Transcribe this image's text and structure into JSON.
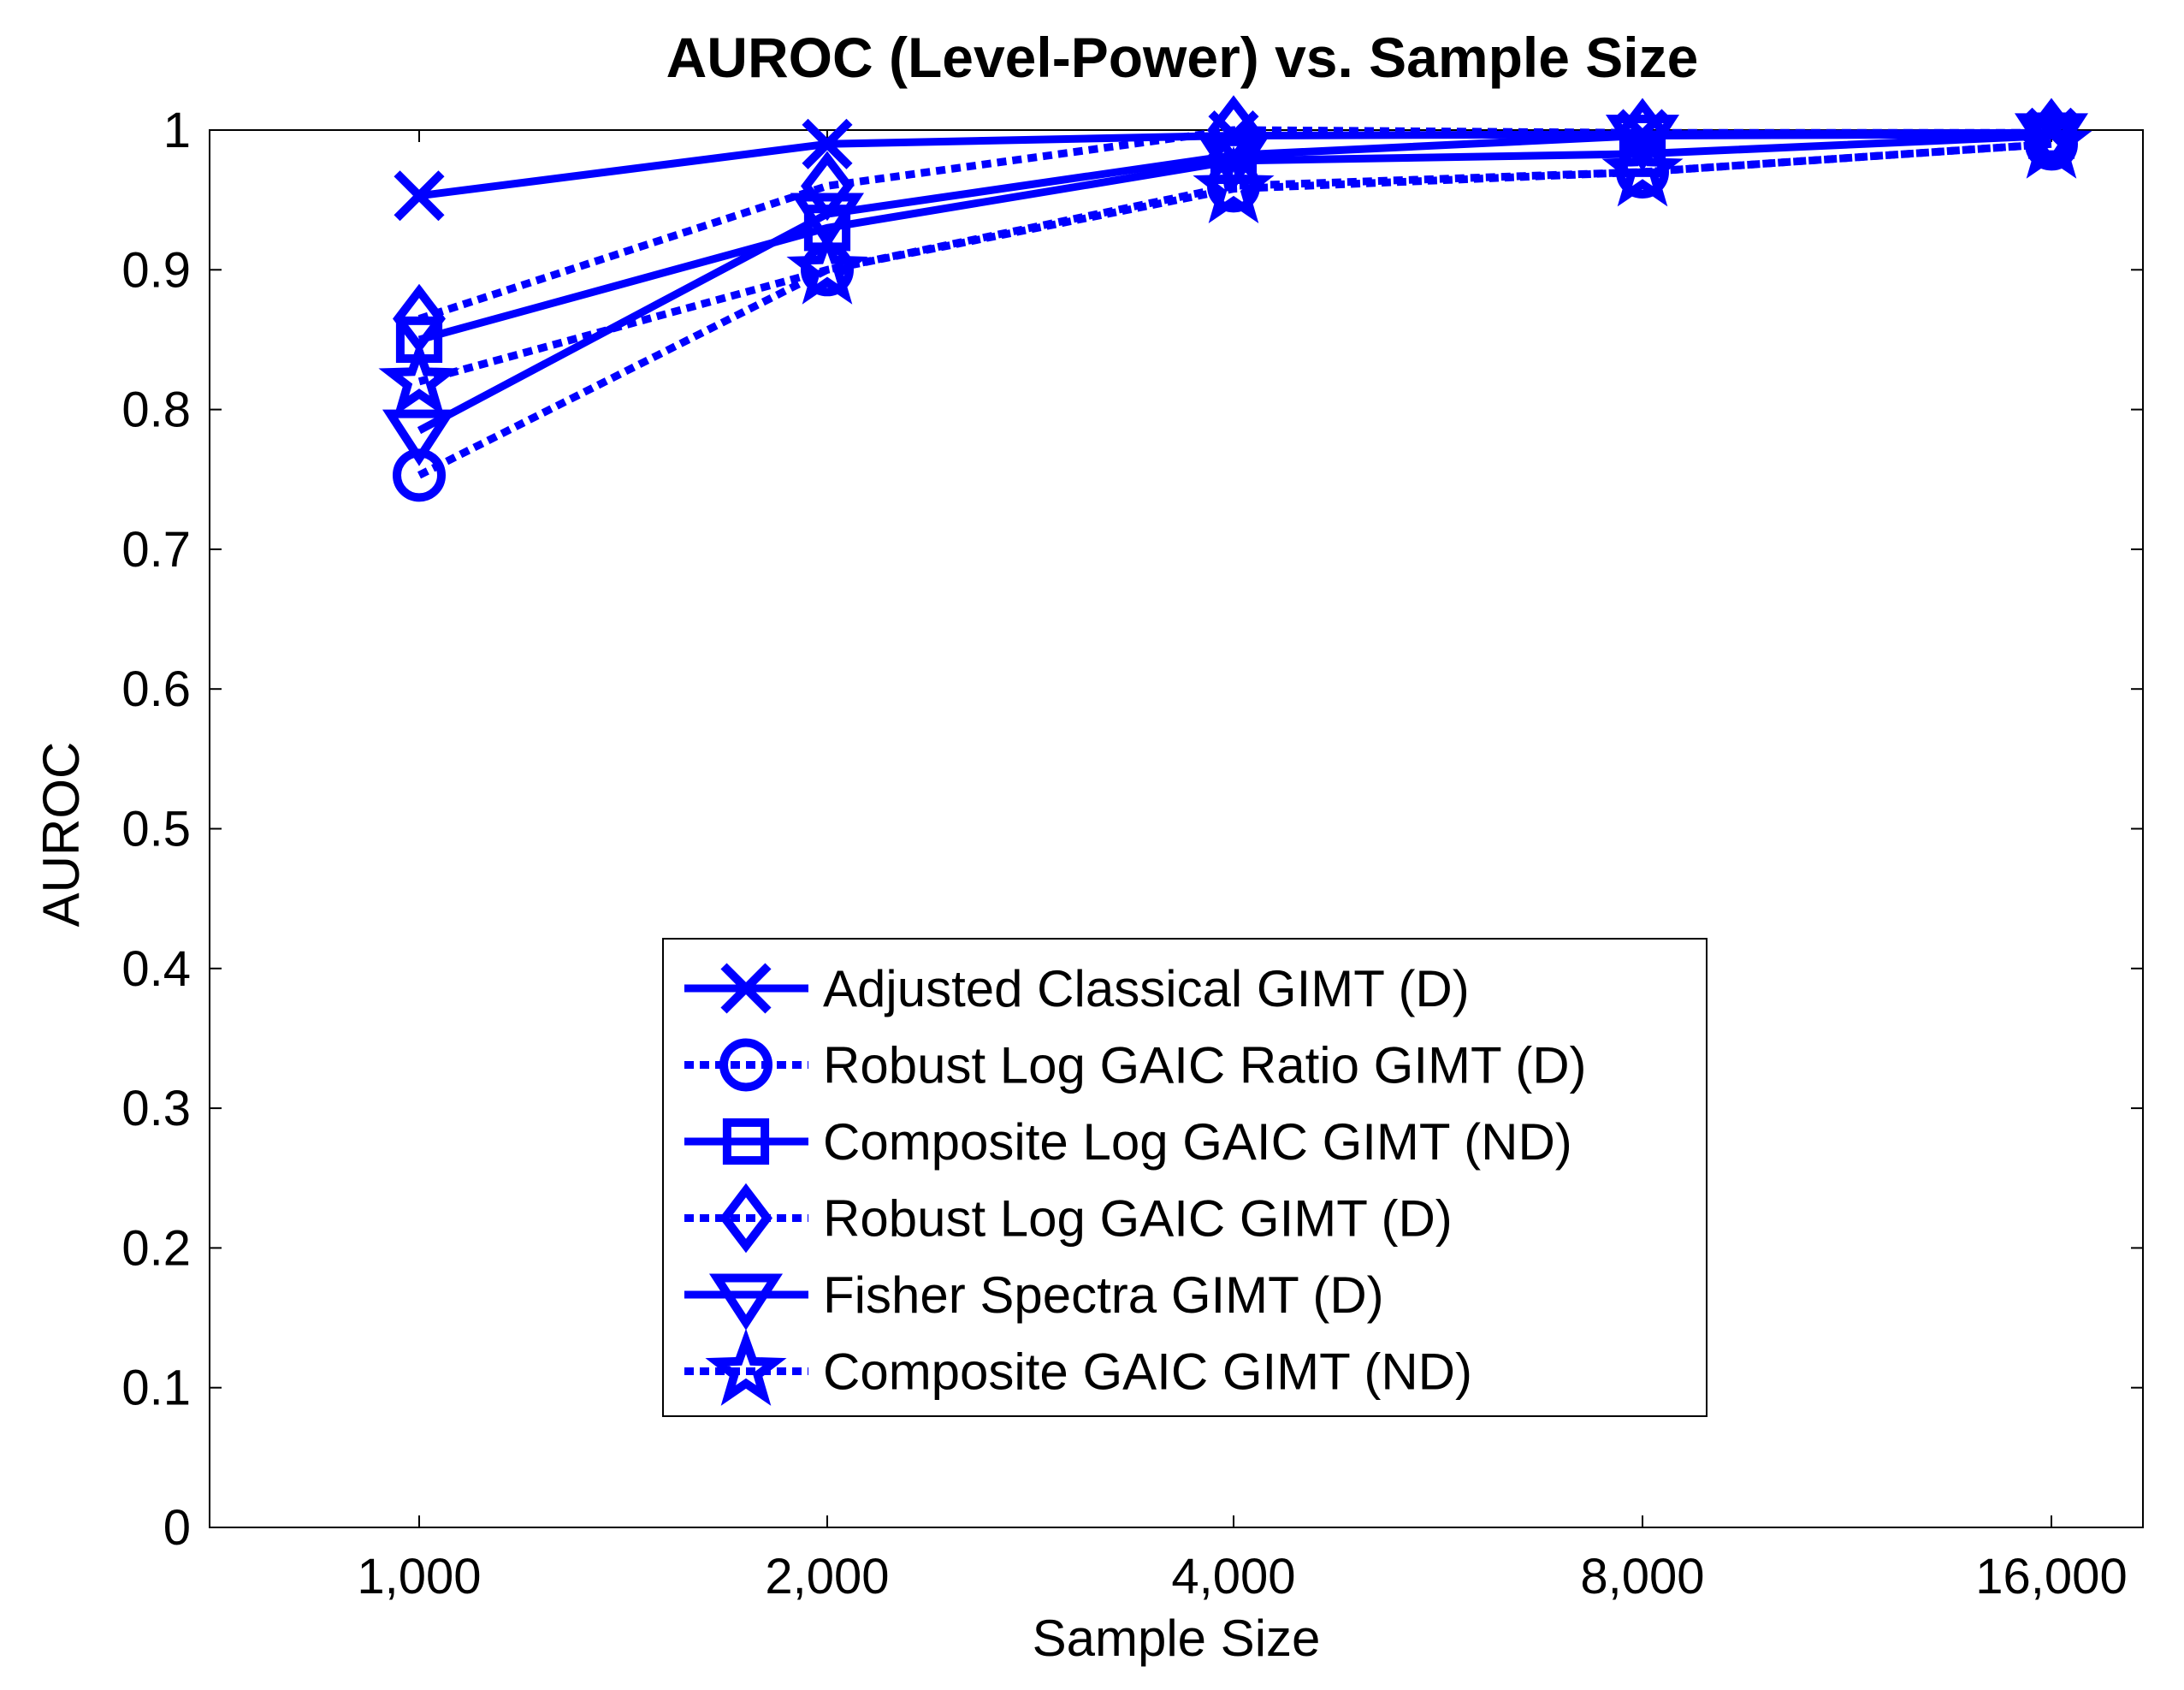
{
  "chart_data": {
    "type": "line",
    "title": "AUROC (Level-Power) vs. Sample Size",
    "xlabel": "Sample Size",
    "ylabel": "AUROC",
    "categories": [
      "1,000",
      "2,000",
      "4,000",
      "8,000",
      "16,000"
    ],
    "ylim": [
      0,
      1
    ],
    "yticks": [
      "0",
      "0.1",
      "0.2",
      "0.3",
      "0.4",
      "0.5",
      "0.6",
      "0.7",
      "0.8",
      "0.9",
      "1"
    ],
    "legend_position": "lower-center",
    "grid": false,
    "series": [
      {
        "name": "Adjusted Classical GIMT (D)",
        "marker": "x",
        "linestyle": "solid",
        "values": [
          0.953,
          0.99,
          0.996,
          0.997,
          0.998
        ]
      },
      {
        "name": "Robust Log GAIC Ratio GIMT (D)",
        "marker": "circle",
        "linestyle": "dotted",
        "values": [
          0.753,
          0.9,
          0.96,
          0.97,
          0.99
        ]
      },
      {
        "name": "Composite Log GAIC GIMT (ND)",
        "marker": "square",
        "linestyle": "solid",
        "values": [
          0.85,
          0.93,
          0.978,
          0.983,
          0.996
        ]
      },
      {
        "name": "Robust Log GAIC GIMT (D)",
        "marker": "diamond",
        "linestyle": "dotted",
        "values": [
          0.865,
          0.96,
          1.0,
          0.998,
          0.998
        ]
      },
      {
        "name": "Fisher Spectra GIMT (D)",
        "marker": "triangle-down",
        "linestyle": "solid",
        "values": [
          0.785,
          0.94,
          0.982,
          0.996,
          0.997
        ]
      },
      {
        "name": "Composite GAIC GIMT (ND)",
        "marker": "star",
        "linestyle": "dotted",
        "values": [
          0.82,
          0.9,
          0.958,
          0.97,
          0.99
        ]
      }
    ],
    "color": "#0000ff"
  }
}
